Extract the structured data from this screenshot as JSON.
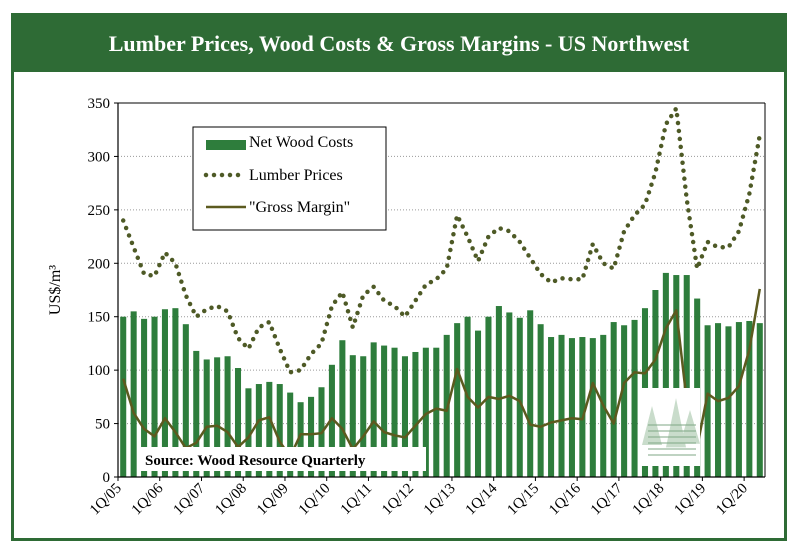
{
  "chart_data": {
    "type": "bar",
    "title": "Lumber Prices, Wood Costs & Gross Margins - US Northwest",
    "xlabel": "",
    "ylabel": "US$/m³",
    "ylim": [
      0,
      350
    ],
    "yticks": [
      "0",
      "50",
      "100",
      "150",
      "200",
      "250",
      "300",
      "350"
    ],
    "xtick_labels": [
      "1Q/05",
      "1Q/06",
      "1Q/07",
      "1Q/08",
      "1Q/09",
      "1Q/10",
      "1Q/11",
      "1Q/12",
      "1Q/13",
      "1Q/14",
      "1Q/15",
      "1Q/16",
      "1Q/17",
      "1Q/18",
      "1Q/19",
      "1Q/20"
    ],
    "grid": true,
    "legend_position": "top-left",
    "source": "Source: Wood Resource Quarterly",
    "series": [
      {
        "name": "Net Wood Costs",
        "style": "bar",
        "color": "#2e7d3c",
        "values": [
          150,
          155,
          148,
          150,
          157,
          158,
          143,
          118,
          110,
          112,
          113,
          102,
          83,
          87,
          89,
          87,
          79,
          70,
          75,
          84,
          105,
          128,
          114,
          113,
          126,
          123,
          121,
          113,
          117,
          121,
          121,
          133,
          144,
          150,
          137,
          150,
          160,
          154,
          149,
          156,
          143,
          131,
          133,
          130,
          131,
          130,
          133,
          145,
          142,
          147,
          158,
          175,
          191,
          189,
          189,
          167,
          142,
          144,
          141,
          145,
          146,
          144
        ],
        "labels": [
          "1Q/05",
          "2Q/05",
          "3Q/05",
          "4Q/05",
          "1Q/06",
          "2Q/06",
          "3Q/06",
          "4Q/06",
          "1Q/07",
          "2Q/07",
          "3Q/07",
          "4Q/07",
          "1Q/08",
          "2Q/08",
          "3Q/08",
          "4Q/08",
          "1Q/09",
          "2Q/09",
          "3Q/09",
          "4Q/09",
          "1Q/10",
          "2Q/10",
          "3Q/10",
          "4Q/10",
          "1Q/11",
          "2Q/11",
          "3Q/11",
          "4Q/11",
          "1Q/12",
          "2Q/12",
          "3Q/12",
          "4Q/12",
          "1Q/13",
          "2Q/13",
          "3Q/13",
          "4Q/13",
          "1Q/14",
          "2Q/14",
          "3Q/14",
          "4Q/14",
          "1Q/15",
          "2Q/15",
          "3Q/15",
          "4Q/15",
          "1Q/16",
          "2Q/16",
          "3Q/16",
          "4Q/16",
          "1Q/17",
          "2Q/17",
          "3Q/17",
          "4Q/17",
          "1Q/18",
          "2Q/18",
          "3Q/18",
          "4Q/18",
          "1Q/19",
          "2Q/19",
          "3Q/19",
          "4Q/19",
          "1Q/20",
          "2Q/20"
        ]
      },
      {
        "name": "Lumber Prices",
        "style": "dotted-line",
        "color": "#4e5a26",
        "values": [
          240,
          215,
          190,
          188,
          210,
          200,
          170,
          150,
          157,
          160,
          155,
          130,
          120,
          140,
          145,
          120,
          98,
          100,
          115,
          125,
          160,
          173,
          140,
          170,
          178,
          165,
          160,
          150,
          165,
          180,
          185,
          195,
          245,
          225,
          202,
          225,
          233,
          230,
          220,
          205,
          190,
          182,
          186,
          185,
          185,
          218,
          200,
          195,
          230,
          245,
          255,
          285,
          330,
          345,
          260,
          195,
          220,
          215,
          215,
          230,
          265,
          320
        ]
      },
      {
        "name": "\"Gross Margin\"",
        "style": "line",
        "color": "#5c5a1f",
        "values": [
          92,
          60,
          45,
          38,
          55,
          42,
          27,
          32,
          47,
          48,
          42,
          28,
          37,
          53,
          56,
          33,
          19,
          40,
          40,
          41,
          55,
          45,
          26,
          38,
          52,
          42,
          39,
          37,
          48,
          59,
          64,
          62,
          101,
          75,
          65,
          75,
          73,
          76,
          71,
          49,
          47,
          51,
          53,
          55,
          54,
          88,
          67,
          50,
          88,
          98,
          97,
          110,
          139,
          156,
          71,
          28,
          78,
          71,
          74,
          85,
          119,
          176
        ]
      }
    ]
  }
}
